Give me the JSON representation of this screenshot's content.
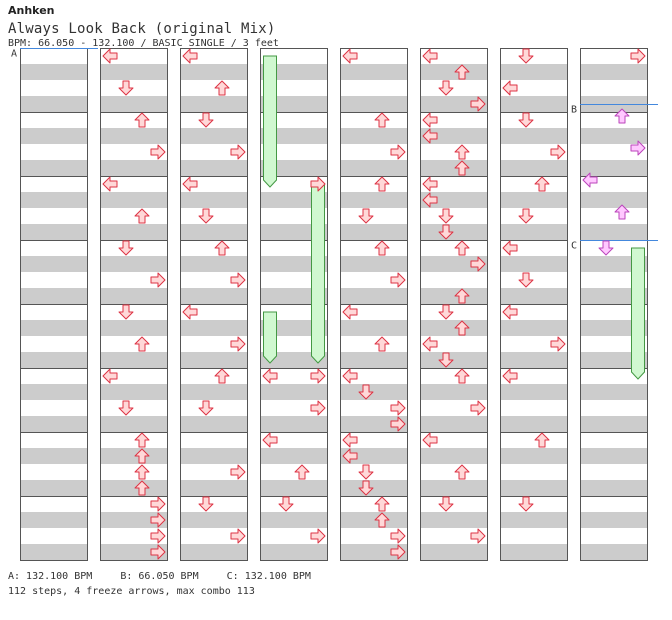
{
  "header": {
    "artist": "Anhken",
    "title": "Always Look Back (original Mix)",
    "info": "BPM: 66.050 - 132.100 / BASIC SINGLE / 3 feet"
  },
  "columns": 8,
  "measures_per_column": 8,
  "lane_order": [
    "L",
    "D",
    "U",
    "R"
  ],
  "colors": {
    "stripe": "#cccccc",
    "background": "#ffffff",
    "arrow_fill": "#ffd8d8",
    "arrow_stroke": "#dd3344",
    "arrow_fill_b": "#ffc8ff",
    "arrow_stroke_b": "#bb44bb",
    "freeze_fill": "#d0f8d0",
    "freeze_stroke": "#449944",
    "bpm_line": "#4488dd"
  },
  "bpm_markers": [
    {
      "label": "A",
      "column": 0,
      "pos": 0
    },
    {
      "label": "B",
      "column": 7,
      "pos": 56
    },
    {
      "label": "C",
      "column": 7,
      "pos": 192
    }
  ],
  "arrows": [
    [
      1,
      "L",
      0
    ],
    [
      1,
      "D",
      32
    ],
    [
      1,
      "U",
      64
    ],
    [
      1,
      "R",
      96
    ],
    [
      1,
      "L",
      128
    ],
    [
      1,
      "U",
      160
    ],
    [
      1,
      "D",
      192
    ],
    [
      1,
      "R",
      224
    ],
    [
      1,
      "D",
      256
    ],
    [
      1,
      "U",
      288
    ],
    [
      1,
      "L",
      320
    ],
    [
      1,
      "D",
      352
    ],
    [
      1,
      "U",
      384
    ],
    [
      1,
      "U",
      400
    ],
    [
      1,
      "U",
      416
    ],
    [
      1,
      "U",
      432
    ],
    [
      1,
      "R",
      448
    ],
    [
      1,
      "R",
      464
    ],
    [
      1,
      "R",
      480
    ],
    [
      1,
      "R",
      496
    ],
    [
      2,
      "L",
      0
    ],
    [
      2,
      "U",
      32
    ],
    [
      2,
      "D",
      64
    ],
    [
      2,
      "R",
      96
    ],
    [
      2,
      "L",
      128
    ],
    [
      2,
      "D",
      160
    ],
    [
      2,
      "U",
      192
    ],
    [
      2,
      "R",
      224
    ],
    [
      2,
      "L",
      256
    ],
    [
      2,
      "R",
      288
    ],
    [
      2,
      "U",
      320
    ],
    [
      2,
      "D",
      352
    ],
    [
      2,
      "R",
      416
    ],
    [
      2,
      "D",
      448
    ],
    [
      2,
      "R",
      480
    ],
    [
      3,
      "R",
      128
    ],
    [
      3,
      "L",
      320
    ],
    [
      3,
      "R",
      320
    ],
    [
      3,
      "R",
      352
    ],
    [
      3,
      "L",
      384
    ],
    [
      3,
      "U",
      416
    ],
    [
      3,
      "D",
      448
    ],
    [
      3,
      "R",
      480
    ],
    [
      4,
      "L",
      0
    ],
    [
      4,
      "U",
      64
    ],
    [
      4,
      "R",
      96
    ],
    [
      4,
      "U",
      128
    ],
    [
      4,
      "D",
      160
    ],
    [
      4,
      "U",
      192
    ],
    [
      4,
      "R",
      224
    ],
    [
      4,
      "L",
      256
    ],
    [
      4,
      "U",
      288
    ],
    [
      4,
      "L",
      320
    ],
    [
      4,
      "D",
      336
    ],
    [
      4,
      "R",
      352
    ],
    [
      4,
      "R",
      368
    ],
    [
      4,
      "L",
      384
    ],
    [
      4,
      "L",
      400
    ],
    [
      4,
      "D",
      416
    ],
    [
      4,
      "D",
      432
    ],
    [
      4,
      "U",
      448
    ],
    [
      4,
      "U",
      464
    ],
    [
      4,
      "R",
      480
    ],
    [
      4,
      "R",
      496
    ],
    [
      5,
      "L",
      0
    ],
    [
      5,
      "U",
      16
    ],
    [
      5,
      "D",
      32
    ],
    [
      5,
      "R",
      48
    ],
    [
      5,
      "L",
      64
    ],
    [
      5,
      "L",
      80
    ],
    [
      5,
      "U",
      96
    ],
    [
      5,
      "U",
      112
    ],
    [
      5,
      "L",
      128
    ],
    [
      5,
      "L",
      144
    ],
    [
      5,
      "D",
      160
    ],
    [
      5,
      "D",
      176
    ],
    [
      5,
      "U",
      192
    ],
    [
      5,
      "R",
      208
    ],
    [
      5,
      "U",
      240
    ],
    [
      5,
      "D",
      256
    ],
    [
      5,
      "U",
      272
    ],
    [
      5,
      "L",
      288
    ],
    [
      5,
      "D",
      304
    ],
    [
      5,
      "U",
      320
    ],
    [
      5,
      "R",
      352
    ],
    [
      5,
      "L",
      384
    ],
    [
      5,
      "U",
      416
    ],
    [
      5,
      "D",
      448
    ],
    [
      5,
      "R",
      480
    ],
    [
      6,
      "D",
      0
    ],
    [
      6,
      "L",
      32
    ],
    [
      6,
      "D",
      64
    ],
    [
      6,
      "R",
      96
    ],
    [
      6,
      "U",
      128
    ],
    [
      6,
      "D",
      160
    ],
    [
      6,
      "L",
      192
    ],
    [
      6,
      "D",
      224
    ],
    [
      6,
      "L",
      256
    ],
    [
      6,
      "R",
      288
    ],
    [
      6,
      "L",
      320
    ],
    [
      6,
      "U",
      384
    ],
    [
      6,
      "D",
      448
    ],
    [
      7,
      "R",
      0
    ],
    [
      7,
      "U",
      60
    ],
    [
      7,
      "R",
      92
    ],
    [
      7,
      "L",
      124
    ],
    [
      7,
      "U",
      156
    ]
  ],
  "arrows_b": [
    [
      7,
      "U",
      60
    ],
    [
      7,
      "R",
      92
    ],
    [
      7,
      "L",
      124
    ],
    [
      7,
      "U",
      156
    ],
    [
      7,
      "D",
      192
    ]
  ],
  "freezes": [
    [
      3,
      "L",
      0,
      128
    ],
    [
      3,
      "R",
      128,
      304
    ],
    [
      3,
      "L",
      256,
      304
    ],
    [
      7,
      "R",
      192,
      320
    ]
  ],
  "footer": {
    "bpm_a": "A: 132.100 BPM",
    "bpm_b": "B: 66.050 BPM",
    "bpm_c": "C: 132.100 BPM",
    "summary": "112 steps, 4 freeze arrows, max combo 113"
  }
}
